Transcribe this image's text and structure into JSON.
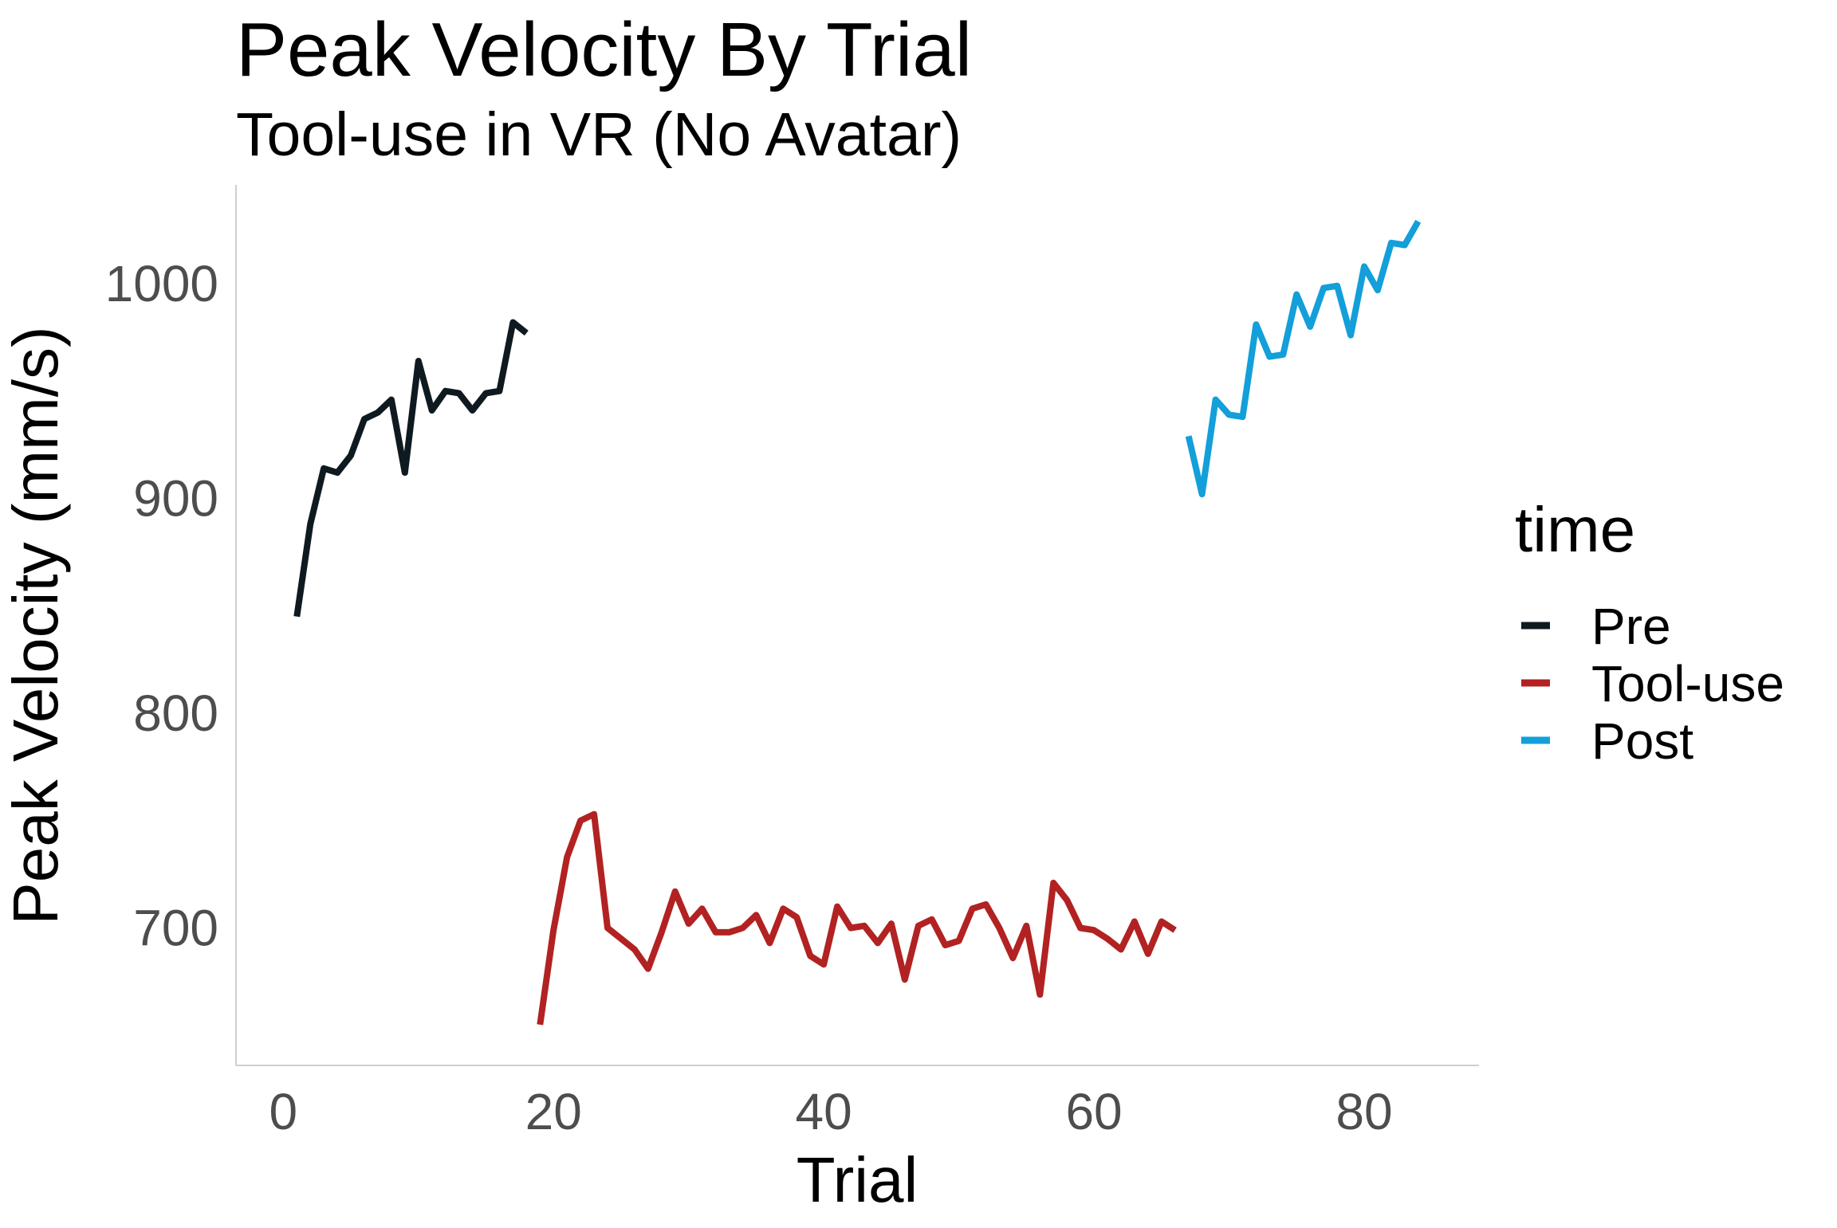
{
  "chart_data": {
    "type": "line",
    "title": "Peak Velocity By Trial",
    "subtitle": "Tool-use in VR (No Avatar)",
    "xlabel": "Trial",
    "ylabel": "Peak Velocity (mm/s)",
    "xlim": [
      -3.5,
      88.5
    ],
    "ylim": [
      636,
      1046
    ],
    "x_ticks": [
      0,
      20,
      40,
      60,
      80
    ],
    "y_ticks": [
      700,
      800,
      900,
      1000
    ],
    "grid": false,
    "legend": {
      "title": "time",
      "position": "right"
    },
    "series": [
      {
        "name": "Pre",
        "color": "#0f1a20",
        "x": [
          1,
          2,
          3,
          4,
          5,
          6,
          7,
          8,
          9,
          10,
          11,
          12,
          13,
          14,
          15,
          16,
          17,
          18
        ],
        "y": [
          845,
          888,
          914,
          912,
          920,
          937,
          940,
          946,
          912,
          964,
          941,
          950,
          949,
          941,
          949,
          950,
          982,
          977
        ]
      },
      {
        "name": "Tool-use",
        "color": "#b22222",
        "x": [
          19,
          20,
          21,
          22,
          23,
          24,
          25,
          26,
          27,
          28,
          29,
          30,
          31,
          32,
          33,
          34,
          35,
          36,
          37,
          38,
          39,
          40,
          41,
          42,
          43,
          44,
          45,
          46,
          47,
          48,
          49,
          50,
          51,
          52,
          53,
          54,
          55,
          56,
          57,
          58,
          59,
          60,
          61,
          62,
          63,
          64,
          65,
          66
        ],
        "y": [
          655,
          699,
          733,
          750,
          753,
          700,
          695,
          690,
          681,
          698,
          717,
          702,
          709,
          698,
          698,
          700,
          706,
          693,
          709,
          705,
          687,
          683,
          710,
          700,
          701,
          693,
          702,
          676,
          701,
          704,
          692,
          694,
          709,
          711,
          700,
          686,
          701,
          669,
          721,
          713,
          700,
          699,
          695,
          690,
          703,
          688,
          703,
          699
        ]
      },
      {
        "name": "Post",
        "color": "#139fd9",
        "x": [
          67,
          68,
          69,
          70,
          71,
          72,
          73,
          74,
          75,
          76,
          77,
          78,
          79,
          80,
          81,
          82,
          83,
          84
        ],
        "y": [
          929,
          902,
          946,
          939,
          938,
          981,
          966,
          967,
          995,
          980,
          998,
          999,
          976,
          1008,
          997,
          1019,
          1018,
          1029
        ]
      }
    ]
  }
}
